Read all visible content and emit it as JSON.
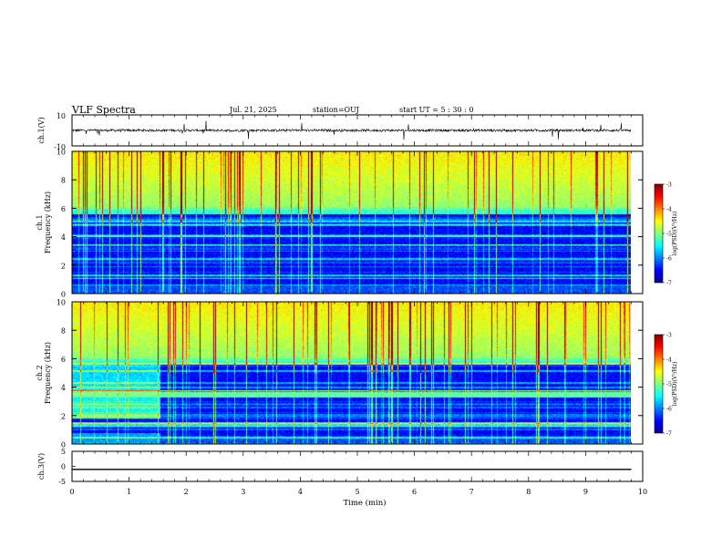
{
  "header": {
    "title": "VLF Spectra",
    "date": "Jul. 21, 2025",
    "station": "station=OUJ",
    "start": "start UT =  5 : 30 : 0"
  },
  "chart_data": [
    {
      "type": "line",
      "panel": "ch1-waveform",
      "ylabel": "ch.1(V)",
      "ylim": [
        -10,
        10
      ],
      "yticks": [
        "10",
        "-10"
      ],
      "xlim": [
        0,
        10
      ],
      "description_values": {
        "baseline_V": 0,
        "typical_noise_V": 1
      }
    },
    {
      "type": "heatmap",
      "panel": "ch1-spectrogram",
      "ylabel_line1": "ch.1",
      "ylabel_line2": "Frequency (kHz)",
      "ylim": [
        0,
        10
      ],
      "yticks": [
        "0",
        "2",
        "4",
        "6",
        "8",
        "10"
      ],
      "xlim": [
        0,
        10
      ],
      "colorbar": {
        "label": "log(PSD)(V²/Hz)",
        "range": [
          -7,
          -3
        ],
        "ticks": [
          "-3",
          "-4",
          "-5",
          "-6",
          "-7"
        ]
      }
    },
    {
      "type": "heatmap",
      "panel": "ch2-spectrogram",
      "ylabel_line1": "ch.2",
      "ylabel_line2": "Frequency (kHz)",
      "ylim": [
        0,
        10
      ],
      "yticks": [
        "0",
        "2",
        "4",
        "6",
        "8",
        "10"
      ],
      "xlim": [
        0,
        10
      ],
      "colorbar": {
        "label": "log(PSD)(V²/Hz)",
        "range": [
          -7,
          -3
        ],
        "ticks": [
          "-3",
          "-4",
          "-5",
          "-6",
          "-7"
        ]
      }
    },
    {
      "type": "line",
      "panel": "ch3-waveform",
      "ylabel": "ch.3(V)",
      "ylim": [
        -5,
        5
      ],
      "yticks": [
        "5",
        "0",
        "-5"
      ],
      "xlim": [
        0,
        10
      ],
      "xticks": [
        "0",
        "1",
        "2",
        "3",
        "4",
        "5",
        "6",
        "7",
        "8",
        "9",
        "10"
      ],
      "xlabel": "Time (min)",
      "x": [
        0,
        9.8
      ],
      "y": [
        -1,
        -1
      ]
    }
  ],
  "colors": {
    "colormap": [
      "#00008f",
      "#0000ff",
      "#0080ff",
      "#00ffff",
      "#80ff80",
      "#ffff00",
      "#ff8000",
      "#ff0000",
      "#800000"
    ],
    "axis": "#000000",
    "background": "#ffffff"
  }
}
